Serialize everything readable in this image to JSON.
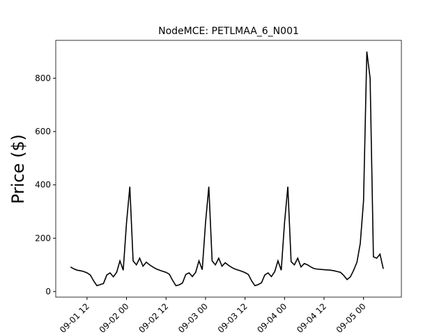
{
  "chart_data": {
    "type": "line",
    "title": "NodeMCE: PETLMAA_6_N001",
    "y_label": "Price ($)",
    "x": [
      "09-01 07",
      "09-01 08",
      "09-01 09",
      "09-01 10",
      "09-01 11",
      "09-01 12",
      "09-01 13",
      "09-01 14",
      "09-01 15",
      "09-01 16",
      "09-01 17",
      "09-01 18",
      "09-01 19",
      "09-01 20",
      "09-01 21",
      "09-01 22",
      "09-01 23",
      "09-02 00",
      "09-02 01",
      "09-02 02",
      "09-02 03",
      "09-02 04",
      "09-02 05",
      "09-02 06",
      "09-02 07",
      "09-02 08",
      "09-02 09",
      "09-02 10",
      "09-02 11",
      "09-02 12",
      "09-02 13",
      "09-02 14",
      "09-02 15",
      "09-02 16",
      "09-02 17",
      "09-02 18",
      "09-02 19",
      "09-02 20",
      "09-02 21",
      "09-02 22",
      "09-02 23",
      "09-03 00",
      "09-03 01",
      "09-03 02",
      "09-03 03",
      "09-03 04",
      "09-03 05",
      "09-03 06",
      "09-03 07",
      "09-03 08",
      "09-03 09",
      "09-03 10",
      "09-03 11",
      "09-03 12",
      "09-03 13",
      "09-03 14",
      "09-03 15",
      "09-03 16",
      "09-03 17",
      "09-03 18",
      "09-03 19",
      "09-03 20",
      "09-03 21",
      "09-03 22",
      "09-03 23",
      "09-04 00",
      "09-04 01",
      "09-04 02",
      "09-04 03",
      "09-04 04",
      "09-04 05",
      "09-04 06",
      "09-04 07",
      "09-04 08",
      "09-04 09",
      "09-04 10",
      "09-04 11",
      "09-04 12",
      "09-04 13",
      "09-04 14",
      "09-04 15",
      "09-04 16",
      "09-04 17",
      "09-04 18",
      "09-04 19",
      "09-04 20",
      "09-04 21",
      "09-04 22",
      "09-04 23",
      "09-05 00",
      "09-05 01",
      "09-05 02",
      "09-05 03",
      "09-05 04",
      "09-05 05",
      "09-05 06"
    ],
    "series": [
      {
        "color": "#000000",
        "values": [
          92,
          85,
          80,
          78,
          75,
          70,
          62,
          40,
          22,
          26,
          30,
          62,
          70,
          55,
          72,
          115,
          80,
          258,
          393,
          115,
          100,
          125,
          95,
          110,
          100,
          92,
          85,
          80,
          76,
          72,
          65,
          42,
          22,
          25,
          32,
          64,
          70,
          56,
          72,
          115,
          82,
          258,
          393,
          115,
          100,
          125,
          95,
          108,
          98,
          90,
          84,
          80,
          76,
          71,
          64,
          40,
          22,
          26,
          33,
          62,
          70,
          56,
          74,
          115,
          80,
          258,
          393,
          112,
          100,
          125,
          92,
          105,
          100,
          92,
          86,
          84,
          83,
          82,
          81,
          80,
          78,
          75,
          72,
          60,
          45,
          55,
          80,
          110,
          180,
          340,
          900,
          800,
          130,
          125,
          140,
          85
        ]
      }
    ],
    "xlim": [
      "09-01 02:30",
      "09-05 11:30"
    ],
    "xticks": [
      "09-01 12",
      "09-02 00",
      "09-02 12",
      "09-03 00",
      "09-03 12",
      "09-04 00",
      "09-04 12",
      "09-05 00"
    ],
    "ylim": [
      -21,
      942
    ],
    "yticks": [
      0,
      200,
      400,
      600,
      800
    ]
  }
}
